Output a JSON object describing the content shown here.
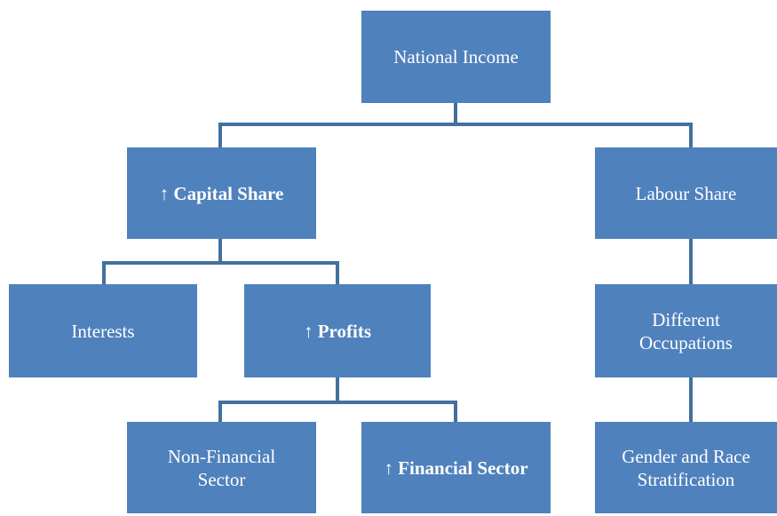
{
  "nodes": [
    {
      "lines": [
        "National Income"
      ]
    },
    {
      "marker": "↑",
      "lines": [
        "Capital Share"
      ],
      "emphasis": true
    },
    {
      "lines": [
        "Labour Share"
      ]
    },
    {
      "lines": [
        "Interests"
      ]
    },
    {
      "marker": "↑",
      "lines": [
        "Profits"
      ],
      "emphasis": true
    },
    {
      "lines": [
        "Different",
        "Occupations"
      ]
    },
    {
      "lines": [
        "Non-Financial",
        "Sector"
      ]
    },
    {
      "marker": "↑",
      "lines": [
        "Financial Sector"
      ],
      "emphasis": true
    },
    {
      "lines": [
        "Gender and Race",
        "Stratification"
      ]
    }
  ]
}
